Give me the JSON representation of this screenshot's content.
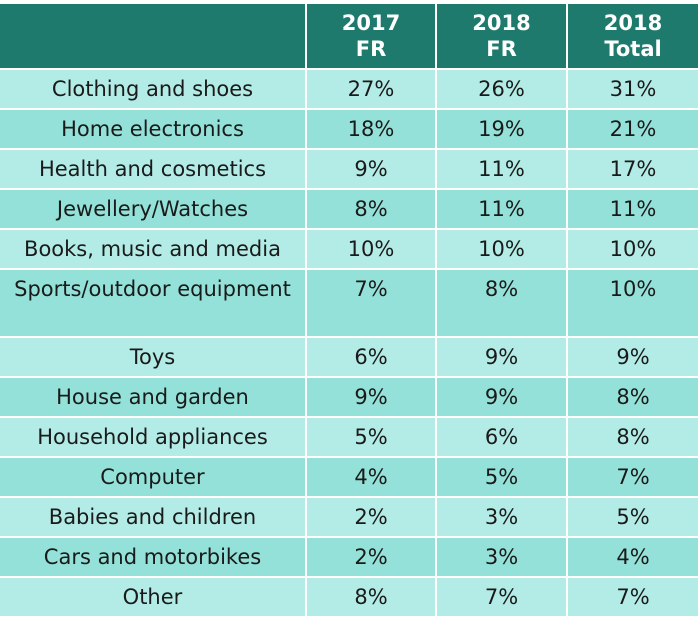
{
  "chart_data": {
    "type": "table",
    "header": {
      "col0": "",
      "col1": {
        "line1": "2017",
        "line2": "FR"
      },
      "col2": {
        "line1": "2018",
        "line2": "FR"
      },
      "col3": {
        "line1": "2018",
        "line2": "Total"
      }
    },
    "rows": [
      {
        "category": "Clothing and shoes",
        "fr2017": "27%",
        "fr2018": "26%",
        "total2018": "31%"
      },
      {
        "category": "Home electronics",
        "fr2017": "18%",
        "fr2018": "19%",
        "total2018": "21%"
      },
      {
        "category": "Health and cosmetics",
        "fr2017": "9%",
        "fr2018": "11%",
        "total2018": "17%"
      },
      {
        "category": "Jewellery/Watches",
        "fr2017": "8%",
        "fr2018": "11%",
        "total2018": "11%"
      },
      {
        "category": "Books, music and media",
        "fr2017": "10%",
        "fr2018": "10%",
        "total2018": "10%"
      },
      {
        "category": "Sports/outdoor equipment",
        "fr2017": "7%",
        "fr2018": "8%",
        "total2018": "10%"
      },
      {
        "category": "Toys",
        "fr2017": "6%",
        "fr2018": "9%",
        "total2018": "9%"
      },
      {
        "category": "House and garden",
        "fr2017": "9%",
        "fr2018": "9%",
        "total2018": "8%"
      },
      {
        "category": "Household appliances",
        "fr2017": "5%",
        "fr2018": "6%",
        "total2018": "8%"
      },
      {
        "category": "Computer",
        "fr2017": "4%",
        "fr2018": "5%",
        "total2018": "7%"
      },
      {
        "category": "Babies and children",
        "fr2017": "2%",
        "fr2018": "3%",
        "total2018": "5%"
      },
      {
        "category": "Cars and motorbikes",
        "fr2017": "2%",
        "fr2018": "3%",
        "total2018": "4%"
      },
      {
        "category": "Other",
        "fr2017": "8%",
        "fr2018": "7%",
        "total2018": "7%"
      }
    ]
  },
  "colors": {
    "header_bg": "#1f7a6e",
    "header_text": "#ffffff",
    "row_light": "#b3ece6",
    "row_dark": "#93e1d8",
    "cell_text": "#1a1a1a"
  }
}
